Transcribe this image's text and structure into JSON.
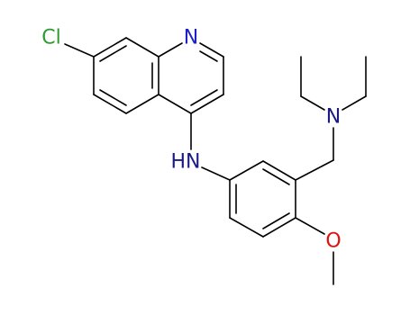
{
  "atoms": [
    {
      "label": "Cl"
    },
    {
      "label": "N"
    },
    {
      "label": "HN"
    },
    {
      "label": "N"
    },
    {
      "label": "O"
    }
  ]
}
